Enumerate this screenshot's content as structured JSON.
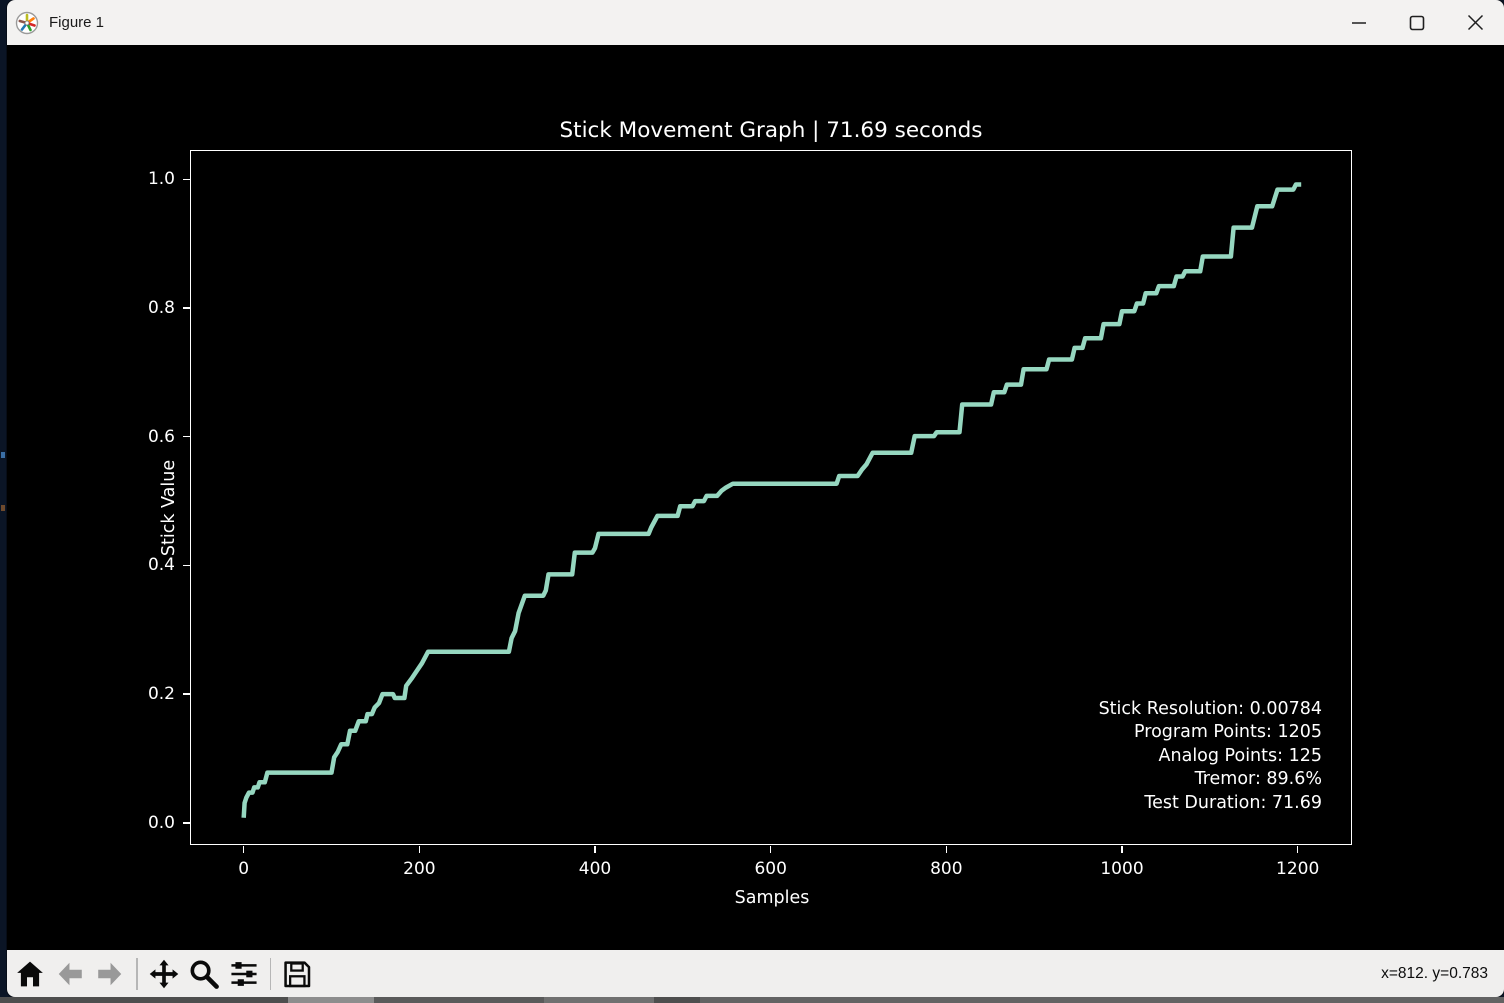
{
  "window": {
    "title": "Figure 1"
  },
  "chart_data": {
    "type": "line",
    "title": "Stick Movement Graph | 71.69 seconds",
    "xlabel": "Samples",
    "ylabel": "Stick Value",
    "x_ticks": [
      0,
      200,
      400,
      600,
      800,
      1000,
      1200
    ],
    "y_ticks": [
      "0.0",
      "0.2",
      "0.4",
      "0.6",
      "0.8",
      "1.0"
    ],
    "xlim": [
      -60,
      1263
    ],
    "ylim": [
      -0.036,
      1.044
    ],
    "grid": false,
    "legend": null,
    "background": "#000000",
    "line_color": "#96d7c0",
    "annotations": [
      "Stick Resolution: 0.00784",
      "Program Points: 1205",
      "Analog Points: 125",
      "Tremor: 89.6%",
      "Test Duration: 71.69"
    ],
    "series": [
      {
        "name": "stick_value",
        "points": [
          [
            0,
            0.008
          ],
          [
            1,
            0.031
          ],
          [
            3,
            0.039
          ],
          [
            6,
            0.047
          ],
          [
            10,
            0.047
          ],
          [
            12,
            0.055
          ],
          [
            16,
            0.055
          ],
          [
            18,
            0.063
          ],
          [
            24,
            0.063
          ],
          [
            27,
            0.078
          ],
          [
            100,
            0.078
          ],
          [
            103,
            0.102
          ],
          [
            107,
            0.11
          ],
          [
            111,
            0.122
          ],
          [
            118,
            0.122
          ],
          [
            121,
            0.143
          ],
          [
            127,
            0.143
          ],
          [
            131,
            0.158
          ],
          [
            139,
            0.158
          ],
          [
            141,
            0.169
          ],
          [
            146,
            0.169
          ],
          [
            149,
            0.179
          ],
          [
            154,
            0.186
          ],
          [
            158,
            0.2
          ],
          [
            170,
            0.2
          ],
          [
            172,
            0.194
          ],
          [
            183,
            0.194
          ],
          [
            185,
            0.213
          ],
          [
            191,
            0.224
          ],
          [
            197,
            0.236
          ],
          [
            203,
            0.248
          ],
          [
            210,
            0.266
          ],
          [
            302,
            0.266
          ],
          [
            305,
            0.287
          ],
          [
            309,
            0.298
          ],
          [
            313,
            0.326
          ],
          [
            320,
            0.353
          ],
          [
            341,
            0.353
          ],
          [
            344,
            0.361
          ],
          [
            347,
            0.386
          ],
          [
            374,
            0.386
          ],
          [
            377,
            0.42
          ],
          [
            397,
            0.42
          ],
          [
            400,
            0.427
          ],
          [
            404,
            0.449
          ],
          [
            461,
            0.449
          ],
          [
            464,
            0.459
          ],
          [
            468,
            0.469
          ],
          [
            471,
            0.477
          ],
          [
            494,
            0.477
          ],
          [
            497,
            0.492
          ],
          [
            511,
            0.492
          ],
          [
            514,
            0.5
          ],
          [
            524,
            0.5
          ],
          [
            527,
            0.508
          ],
          [
            539,
            0.508
          ],
          [
            544,
            0.516
          ],
          [
            549,
            0.521
          ],
          [
            557,
            0.527
          ],
          [
            675,
            0.527
          ],
          [
            678,
            0.539
          ],
          [
            699,
            0.539
          ],
          [
            704,
            0.549
          ],
          [
            709,
            0.557
          ],
          [
            716,
            0.575
          ],
          [
            760,
            0.575
          ],
          [
            764,
            0.601
          ],
          [
            786,
            0.601
          ],
          [
            789,
            0.607
          ],
          [
            815,
            0.607
          ],
          [
            818,
            0.65
          ],
          [
            851,
            0.65
          ],
          [
            854,
            0.669
          ],
          [
            866,
            0.669
          ],
          [
            869,
            0.681
          ],
          [
            885,
            0.681
          ],
          [
            888,
            0.705
          ],
          [
            914,
            0.705
          ],
          [
            917,
            0.72
          ],
          [
            943,
            0.72
          ],
          [
            946,
            0.738
          ],
          [
            955,
            0.738
          ],
          [
            958,
            0.753
          ],
          [
            976,
            0.753
          ],
          [
            979,
            0.775
          ],
          [
            997,
            0.775
          ],
          [
            1000,
            0.795
          ],
          [
            1014,
            0.795
          ],
          [
            1017,
            0.807
          ],
          [
            1024,
            0.807
          ],
          [
            1027,
            0.823
          ],
          [
            1039,
            0.823
          ],
          [
            1042,
            0.834
          ],
          [
            1059,
            0.834
          ],
          [
            1062,
            0.849
          ],
          [
            1069,
            0.849
          ],
          [
            1072,
            0.857
          ],
          [
            1089,
            0.857
          ],
          [
            1092,
            0.88
          ],
          [
            1124,
            0.88
          ],
          [
            1127,
            0.925
          ],
          [
            1148,
            0.925
          ],
          [
            1154,
            0.958
          ],
          [
            1171,
            0.958
          ],
          [
            1177,
            0.984
          ],
          [
            1195,
            0.984
          ],
          [
            1198,
            0.992
          ],
          [
            1204,
            0.992
          ]
        ]
      }
    ]
  },
  "toolbar": {
    "status": "x=812. y=0.783",
    "icons": [
      {
        "name": "home",
        "enabled": true
      },
      {
        "name": "back",
        "enabled": false
      },
      {
        "name": "forward",
        "enabled": false
      },
      {
        "name": "pan",
        "enabled": true
      },
      {
        "name": "zoom",
        "enabled": true
      },
      {
        "name": "subplots",
        "enabled": true
      },
      {
        "name": "save",
        "enabled": true
      }
    ]
  }
}
